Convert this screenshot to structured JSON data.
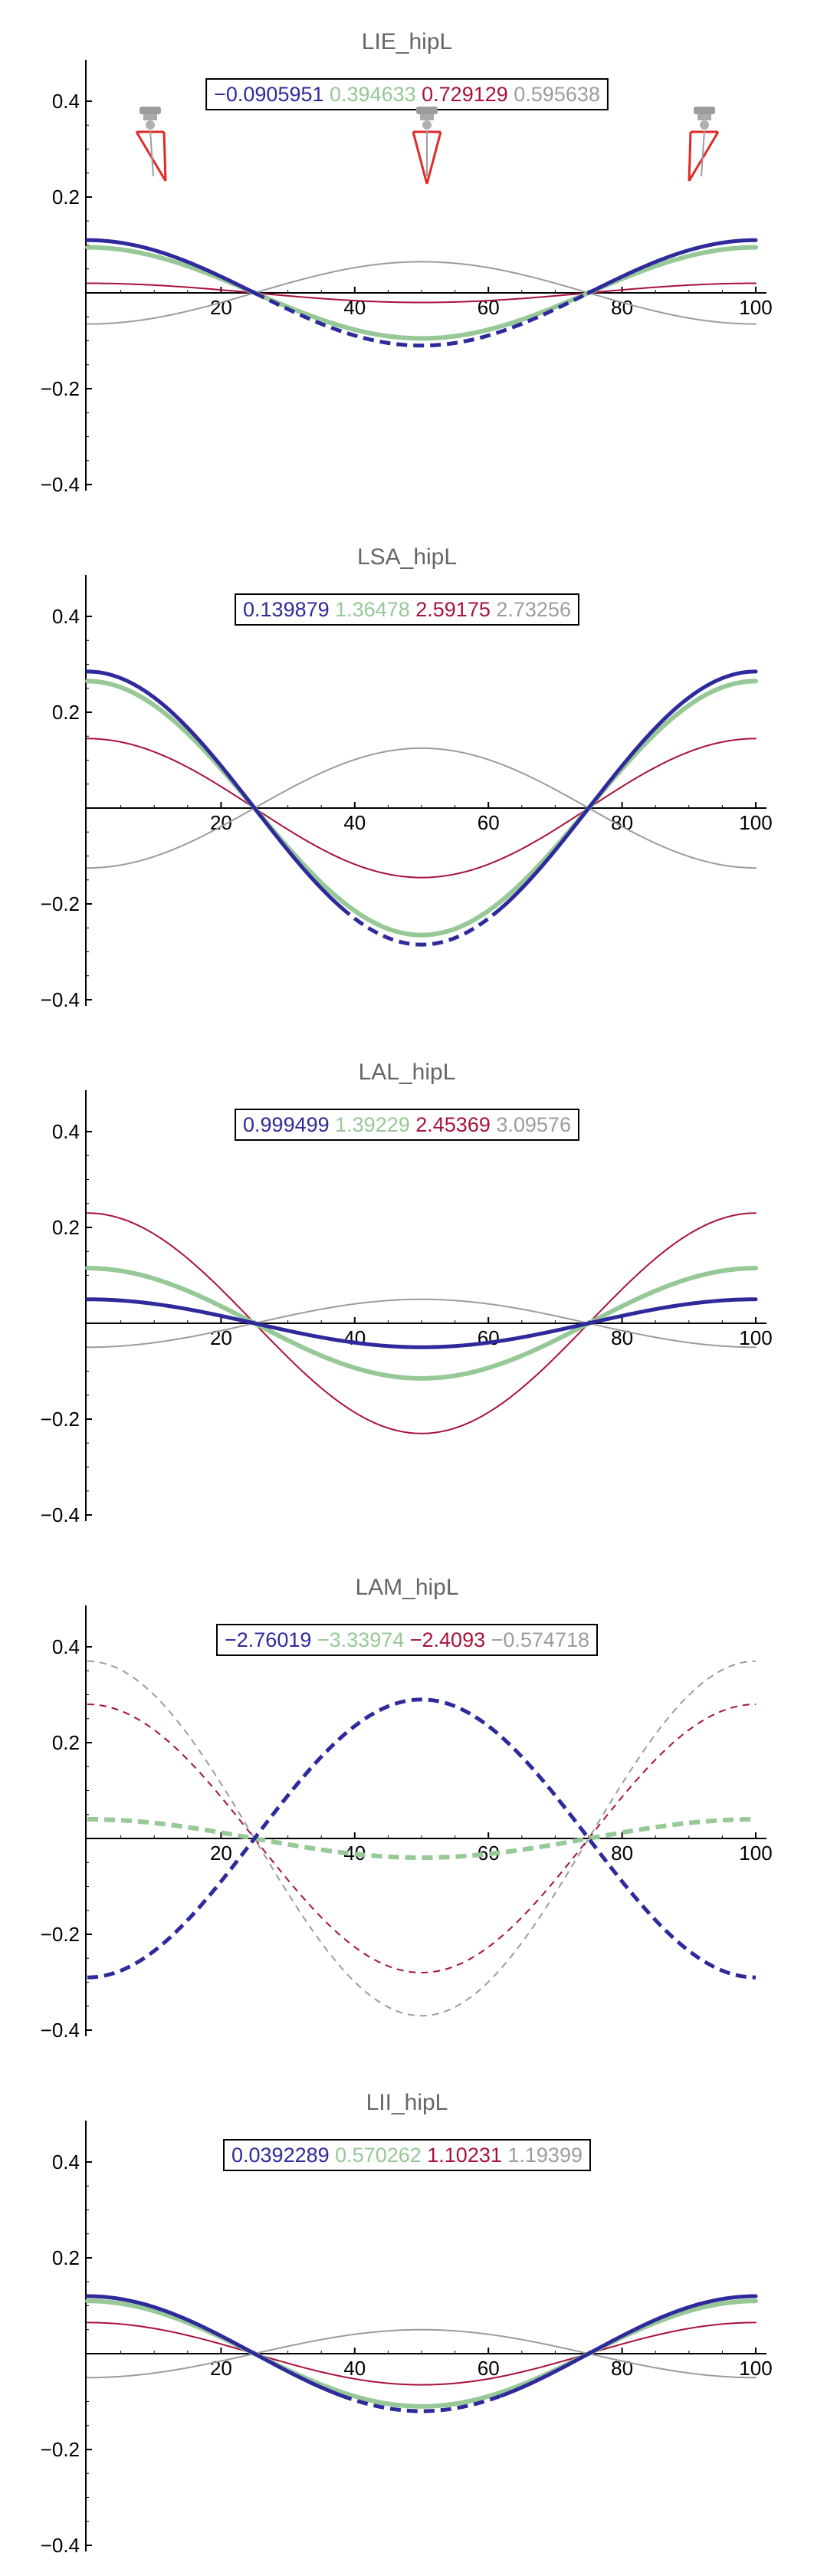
{
  "colors": {
    "series1": "#2e2a9c",
    "series2": "#97c897",
    "series3": "#a8123c",
    "series4": "#9c9c9c",
    "axis": "#000000",
    "title": "#666666"
  },
  "chart_data": [
    {
      "type": "line",
      "title": "LIE_hipL",
      "legend": [
        "-0.0905951",
        "0.394633",
        "0.729129",
        "0.595638"
      ],
      "legend_placement": "top-center",
      "xlim": [
        0,
        100
      ],
      "ylim": [
        -0.4,
        0.4
      ],
      "xticks": [
        "20",
        "40",
        "60",
        "80",
        "100"
      ],
      "yticks": [
        "0.4",
        "0.2",
        "-0.2",
        "-0.4"
      ],
      "grid": false,
      "icons": [
        "pendulum-icon",
        "pendulum-icon",
        "pendulum-icon"
      ],
      "series": [
        {
          "peak": 0.11,
          "dashes": [
            [
              25,
              75
            ]
          ],
          "width": 5
        },
        {
          "peak": 0.095,
          "dashes": [],
          "width": 6
        },
        {
          "peak": 0.02,
          "dashes": [],
          "width": 2
        },
        {
          "peak": -0.065,
          "dashes": [],
          "width": 2
        }
      ]
    },
    {
      "type": "line",
      "title": "LSA_hipL",
      "legend": [
        "0.139879",
        "1.36478",
        "2.59175",
        "2.73256"
      ],
      "legend_placement": "top-center",
      "xlim": [
        0,
        100
      ],
      "ylim": [
        -0.4,
        0.4
      ],
      "xticks": [
        "20",
        "40",
        "60",
        "80",
        "100"
      ],
      "yticks": [
        "0.4",
        "0.2",
        "-0.2",
        "-0.4"
      ],
      "grid": false,
      "series": [
        {
          "peak": 0.285,
          "dashes": [
            [
              38,
              62
            ]
          ],
          "width": 5
        },
        {
          "peak": 0.265,
          "dashes": [],
          "width": 6
        },
        {
          "peak": 0.145,
          "dashes": [],
          "width": 2
        },
        {
          "peak": -0.125,
          "dashes": [],
          "width": 2
        }
      ]
    },
    {
      "type": "line",
      "title": "LAL_hipL",
      "legend": [
        "0.999499",
        "1.39229",
        "2.45369",
        "3.09576"
      ],
      "legend_placement": "top-center",
      "xlim": [
        0,
        100
      ],
      "ylim": [
        -0.4,
        0.4
      ],
      "xticks": [
        "20",
        "40",
        "60",
        "80",
        "100"
      ],
      "yticks": [
        "0.4",
        "0.2",
        "-0.2",
        "-0.4"
      ],
      "grid": false,
      "series": [
        {
          "peak": 0.05,
          "dashes": [],
          "width": 5
        },
        {
          "peak": 0.115,
          "dashes": [],
          "width": 6
        },
        {
          "peak": 0.23,
          "dashes": [],
          "width": 2
        },
        {
          "peak": -0.05,
          "dashes": [],
          "width": 2
        }
      ]
    },
    {
      "type": "line",
      "title": "LAM_hipL",
      "legend": [
        "-2.76019",
        "-3.33974",
        "-2.4093",
        "-0.574718"
      ],
      "legend_placement": "top-center",
      "xlim": [
        0,
        100
      ],
      "ylim": [
        -0.4,
        0.4
      ],
      "xticks": [
        "20",
        "40",
        "60",
        "80",
        "100"
      ],
      "yticks": [
        "0.4",
        "0.2",
        "-0.2",
        "-0.4"
      ],
      "grid": false,
      "series": [
        {
          "peak": -0.29,
          "dashes": [
            [
              0,
              100
            ]
          ],
          "width": 5
        },
        {
          "peak": 0.04,
          "dashes": [
            [
              0,
              100
            ]
          ],
          "width": 6
        },
        {
          "peak": 0.28,
          "dashes": [
            [
              0,
              100
            ]
          ],
          "width": 2
        },
        {
          "peak": 0.37,
          "dashes": [
            [
              0,
              100
            ]
          ],
          "width": 2
        }
      ]
    },
    {
      "type": "line",
      "title": "LII_hipL",
      "legend": [
        "0.0392289",
        "0.570262",
        "1.10231",
        "1.19399"
      ],
      "legend_placement": "top-center",
      "xlim": [
        0,
        100
      ],
      "ylim": [
        -0.4,
        0.4
      ],
      "xticks": [
        "20",
        "40",
        "60",
        "80",
        "100"
      ],
      "yticks": [
        "0.4",
        "0.2",
        "-0.2",
        "-0.4"
      ],
      "grid": false,
      "series": [
        {
          "peak": 0.12,
          "dashes": [
            [
              38,
              62
            ]
          ],
          "width": 5
        },
        {
          "peak": 0.11,
          "dashes": [],
          "width": 6
        },
        {
          "peak": 0.065,
          "dashes": [],
          "width": 2
        },
        {
          "peak": -0.05,
          "dashes": [],
          "width": 2
        }
      ]
    }
  ]
}
